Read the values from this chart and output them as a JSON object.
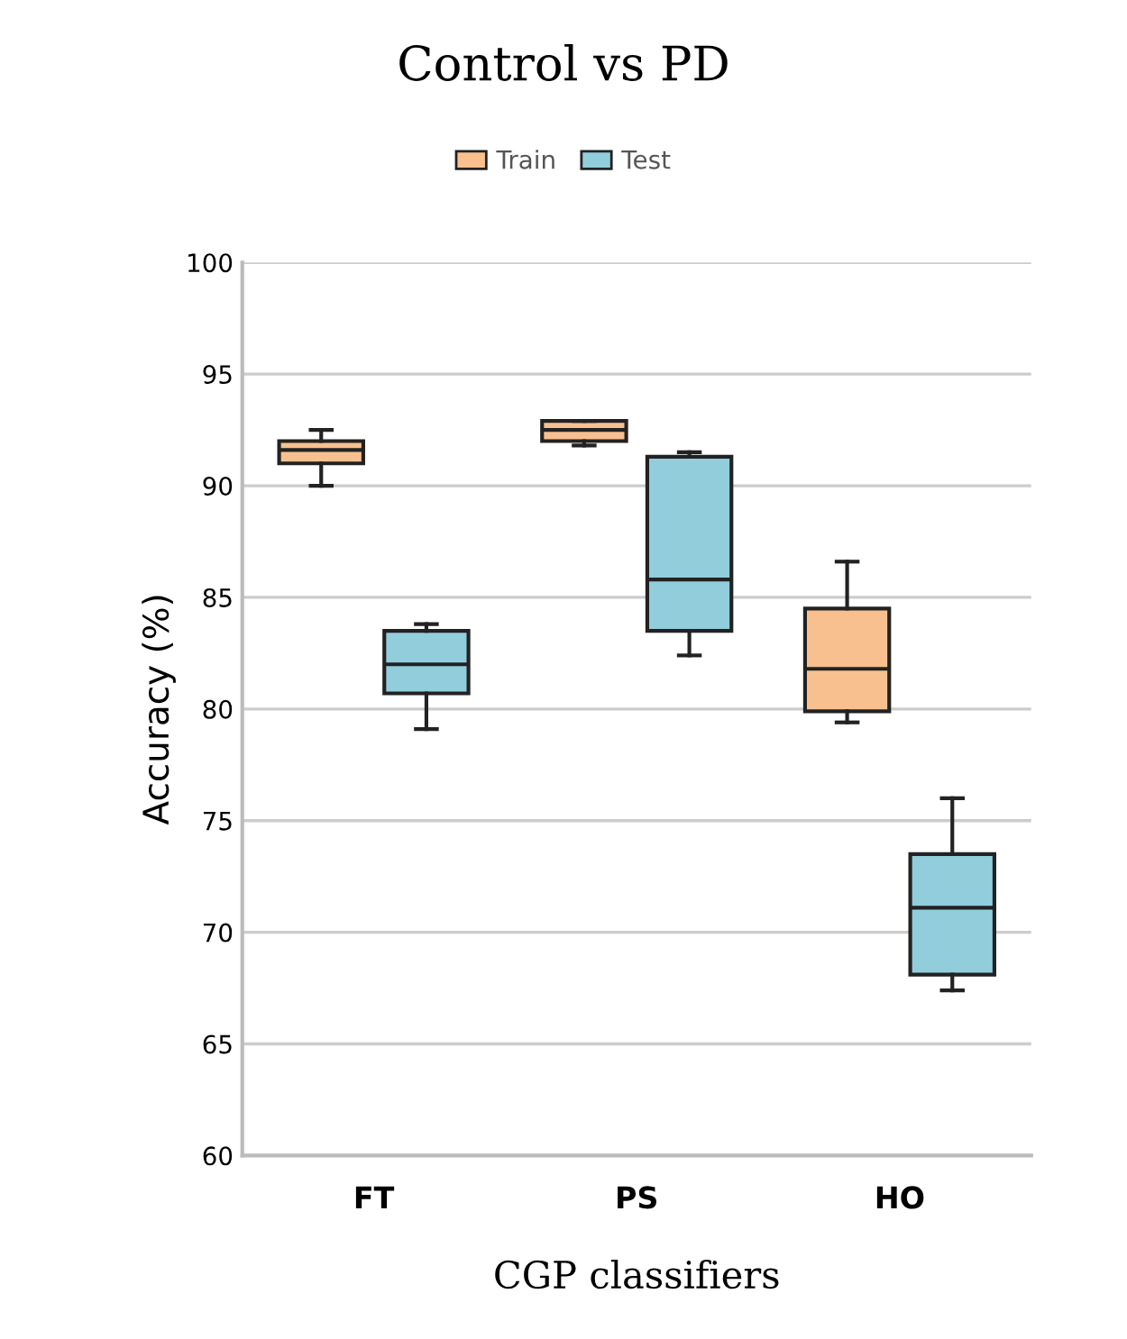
{
  "chart_data": {
    "type": "box",
    "title": "Control vs PD",
    "xlabel": "CGP classifiers",
    "ylabel": "Accuracy (%)",
    "categories": [
      "FT",
      "PS",
      "HO"
    ],
    "series": [
      {
        "name": "Train",
        "color": "#f9c08f",
        "boxes": [
          {
            "low": 90.0,
            "q1": 91.0,
            "median": 91.6,
            "q3": 92.0,
            "high": 92.5
          },
          {
            "low": 91.8,
            "q1": 92.0,
            "median": 92.5,
            "q3": 92.9,
            "high": 92.9
          },
          {
            "low": 79.4,
            "q1": 79.9,
            "median": 81.8,
            "q3": 84.5,
            "high": 86.6
          }
        ]
      },
      {
        "name": "Test",
        "color": "#92cddc",
        "boxes": [
          {
            "low": 79.1,
            "q1": 80.7,
            "median": 82.0,
            "q3": 83.5,
            "high": 83.8
          },
          {
            "low": 82.4,
            "q1": 83.5,
            "median": 85.8,
            "q3": 91.3,
            "high": 91.5
          },
          {
            "low": 67.4,
            "q1": 68.1,
            "median": 71.1,
            "q3": 73.5,
            "high": 76.0
          }
        ]
      }
    ],
    "ylim": [
      60,
      100
    ],
    "yticks": [
      60,
      65,
      70,
      75,
      80,
      85,
      90,
      95,
      100
    ],
    "grid": "y",
    "legend": "top"
  }
}
